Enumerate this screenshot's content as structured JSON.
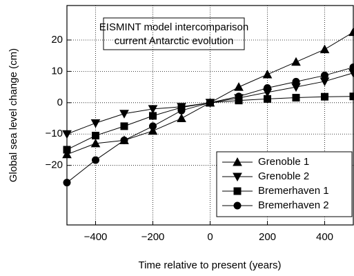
{
  "chart_data": {
    "type": "line",
    "title": [
      "EISMINT model intercomparison",
      "current Antarctic evolution"
    ],
    "x_label": "Time relative to present (years)",
    "y_label": "Global sea level change  (cm)",
    "x": [
      -500,
      -400,
      -300,
      -200,
      -100,
      0,
      100,
      200,
      300,
      400,
      500
    ],
    "series": [
      {
        "name": "Grenoble 1",
        "color": "#000000",
        "marker": "triangle-up",
        "values": [
          -16.5,
          -13,
          -12,
          -9,
          -5,
          0,
          5,
          9,
          13,
          17,
          22.5
        ]
      },
      {
        "name": "Grenoble 2",
        "color": "#000000",
        "marker": "triangle-down",
        "values": [
          -10,
          -6.5,
          -3.5,
          -2,
          -1.3,
          0,
          1.5,
          3.3,
          5,
          6.8,
          9.5
        ]
      },
      {
        "name": "Bremerhaven 1",
        "color": "#000000",
        "marker": "square",
        "values": [
          -15,
          -10.5,
          -7.5,
          -4.2,
          -1.5,
          0,
          0.7,
          1.2,
          1.6,
          1.9,
          2
        ]
      },
      {
        "name": "Bremerhaven 2",
        "color": "#000000",
        "marker": "circle",
        "values": [
          -25.5,
          -18.3,
          -12,
          -7.5,
          -2.5,
          0,
          2,
          4.7,
          6.7,
          8.7,
          11.3
        ]
      }
    ],
    "xlim": [
      -500,
      500
    ],
    "xticks": [
      {
        "value": -400,
        "label": "−400"
      },
      {
        "value": -200,
        "label": "−200"
      },
      0,
      200,
      400
    ],
    "ylim": [
      -39,
      31
    ],
    "yticks": [
      {
        "value": -20,
        "label": "−20"
      },
      {
        "value": -10,
        "label": "−10"
      },
      0,
      10,
      20
    ],
    "grid": true,
    "legend": "lower right"
  }
}
